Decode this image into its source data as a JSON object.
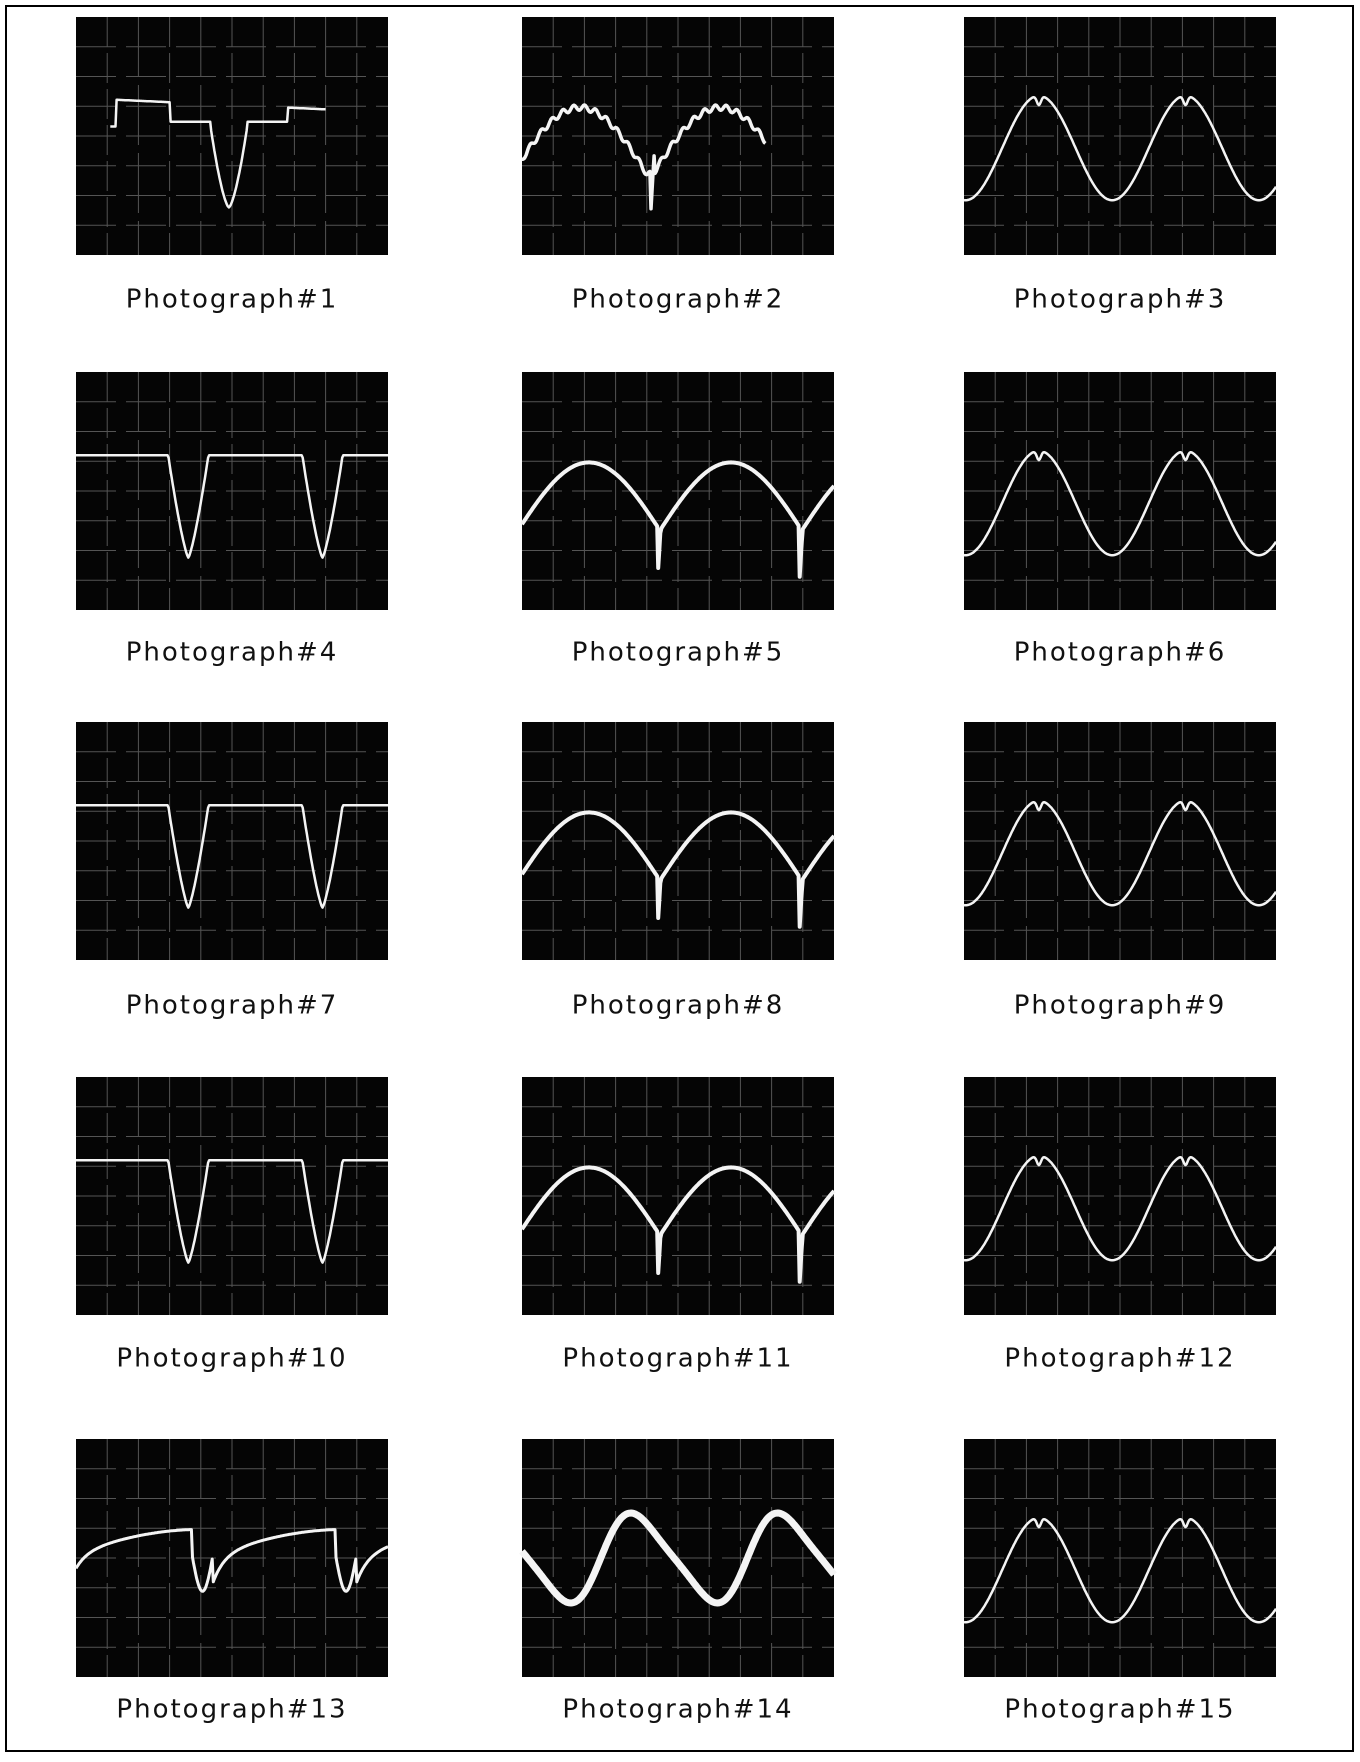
{
  "photographs": [
    {
      "caption": "Photograph#1"
    },
    {
      "caption": "Photograph#2"
    },
    {
      "caption": "Photograph#3"
    },
    {
      "caption": "Photograph#4"
    },
    {
      "caption": "Photograph#5"
    },
    {
      "caption": "Photograph#6"
    },
    {
      "caption": "Photograph#7"
    },
    {
      "caption": "Photograph#8"
    },
    {
      "caption": "Photograph#9"
    },
    {
      "caption": "Photograph#10"
    },
    {
      "caption": "Photograph#11"
    },
    {
      "caption": "Photograph#12"
    },
    {
      "caption": "Photograph#13"
    },
    {
      "caption": "Photograph#14"
    },
    {
      "caption": "Photograph#15"
    }
  ]
}
